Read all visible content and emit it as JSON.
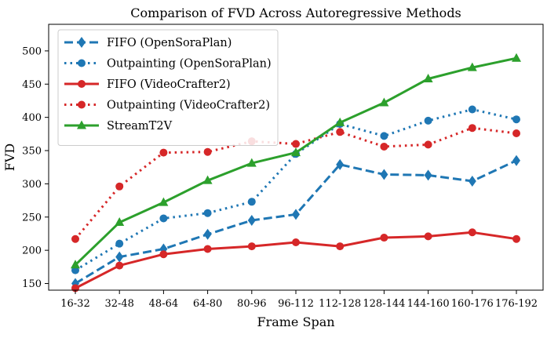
{
  "chart_data": {
    "type": "line",
    "title": "Comparison of FVD Across Autoregressive Methods",
    "xlabel": "Frame Span",
    "ylabel": "FVD",
    "categories": [
      "16-32",
      "32-48",
      "48-64",
      "64-80",
      "80-96",
      "96-112",
      "112-128",
      "128-144",
      "144-160",
      "160-176",
      "176-192"
    ],
    "ylim": [
      140,
      540
    ],
    "yticks": [
      150,
      200,
      250,
      300,
      350,
      400,
      450,
      500
    ],
    "grid": false,
    "legend_position": "top-left",
    "series": [
      {
        "name": "FIFO (OpenSoraPlan)",
        "color": "#1f77b4",
        "linestyle": "dashed",
        "marker": "diamond",
        "values": [
          150,
          190,
          202,
          224,
          245,
          254,
          329,
          314,
          313,
          304,
          335
        ]
      },
      {
        "name": "Outpainting (OpenSoraPlan)",
        "color": "#1f77b4",
        "linestyle": "dotted",
        "marker": "circle",
        "values": [
          170,
          210,
          248,
          256,
          273,
          345,
          390,
          372,
          395,
          412,
          397
        ]
      },
      {
        "name": "FIFO (VideoCrafter2)",
        "color": "#d62728",
        "linestyle": "solid",
        "marker": "circle",
        "values": [
          143,
          177,
          194,
          202,
          206,
          212,
          206,
          219,
          221,
          227,
          217
        ]
      },
      {
        "name": "Outpainting (VideoCrafter2)",
        "color": "#d62728",
        "linestyle": "dotted",
        "marker": "circle",
        "values": [
          217,
          296,
          347,
          348,
          364,
          360,
          378,
          356,
          359,
          384,
          376
        ]
      },
      {
        "name": "StreamT2V",
        "color": "#2ca02c",
        "linestyle": "solid",
        "marker": "triangle",
        "values": [
          178,
          242,
          272,
          305,
          331,
          347,
          392,
          422,
          458,
          475,
          489
        ]
      }
    ]
  }
}
